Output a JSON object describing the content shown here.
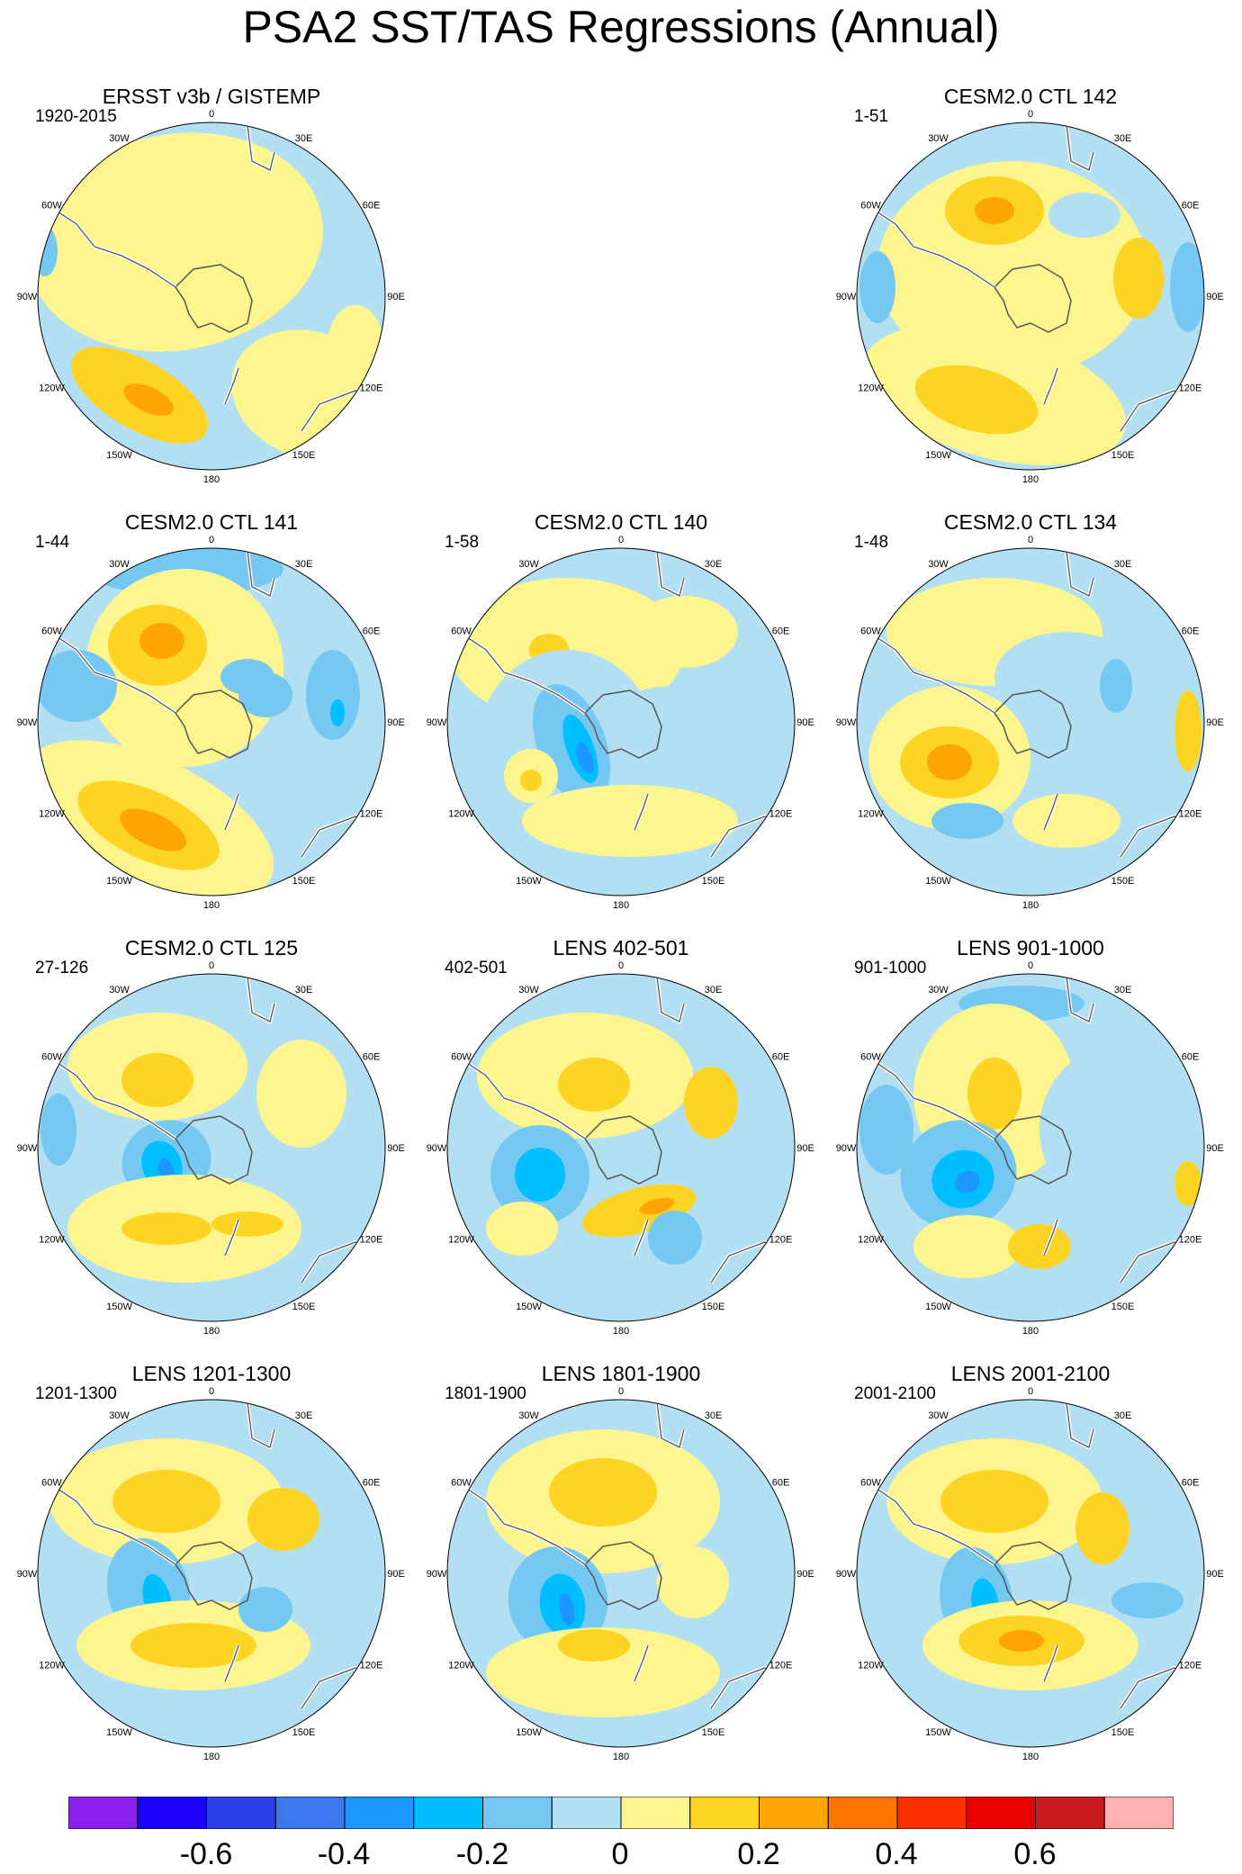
{
  "title": "PSA2 SST/TAS Regressions (Annual)",
  "longitude_labels": [
    "0",
    "30E",
    "60E",
    "90E",
    "120E",
    "150E",
    "180",
    "150W",
    "120W",
    "90W",
    "60W",
    "30W"
  ],
  "panels": [
    {
      "id": "p1",
      "title": "ERSST v3b / GISTEMP",
      "period": "1920-2015",
      "pattern": "obs"
    },
    {
      "id": "p2",
      "title": "CESM2.0 CTL 142",
      "period": "1-51",
      "pattern": "c142"
    },
    {
      "id": "p3",
      "title": "CESM2.0 CTL 141",
      "period": "1-44",
      "pattern": "c141"
    },
    {
      "id": "p4",
      "title": "CESM2.0 CTL 140",
      "period": "1-58",
      "pattern": "c140"
    },
    {
      "id": "p5",
      "title": "CESM2.0 CTL 134",
      "period": "1-48",
      "pattern": "c134"
    },
    {
      "id": "p6",
      "title": "CESM2.0 CTL 125",
      "period": "27-126",
      "pattern": "c125"
    },
    {
      "id": "p7",
      "title": "LENS 402-501",
      "period": "402-501",
      "pattern": "l402"
    },
    {
      "id": "p8",
      "title": "LENS 901-1000",
      "period": "901-1000",
      "pattern": "l901"
    },
    {
      "id": "p9",
      "title": "LENS 1201-1300",
      "period": "1201-1300",
      "pattern": "l1201"
    },
    {
      "id": "p10",
      "title": "LENS 1801-1900",
      "period": "1801-1900",
      "pattern": "l1801"
    },
    {
      "id": "p11",
      "title": "LENS 2001-2100",
      "period": "2001-2100",
      "pattern": "l2001"
    }
  ],
  "colorbar": {
    "colors": [
      "#8a1fee",
      "#1a00ff",
      "#2a41e8",
      "#3a78ee",
      "#1e96ff",
      "#00bfff",
      "#74c8f2",
      "#b3dff3",
      "#fdf68e",
      "#fdd324",
      "#fda602",
      "#fd7501",
      "#fe3000",
      "#ea0000",
      "#cb1a1d",
      "#feb2b4"
    ],
    "labels": [
      "-0.6",
      "-0.4",
      "-0.2",
      "0",
      "0.2",
      "0.4",
      "0.6"
    ]
  }
}
